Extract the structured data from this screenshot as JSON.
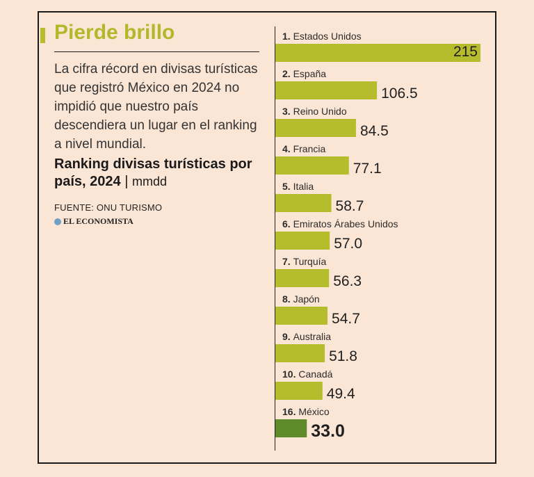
{
  "header": {
    "title": "Pierde brillo",
    "subtitle": "La cifra récord en divisas turísticas que registró México en 2024 no impidió que nuestro país descendiera un lugar en el ranking a nivel mundial.",
    "chart_title": "Ranking divisas turísticas por país, 2024",
    "chart_unit": "mmdd",
    "source": "FUENTE: ONU TURISMO",
    "brand": "EL ECONOMISTA"
  },
  "colors": {
    "background": "#fbe6d6",
    "bar": "#b5bd2c",
    "highlight_bar": "#5f8a2c",
    "title": "#b2b82a"
  },
  "chart_data": {
    "type": "bar",
    "orientation": "horizontal",
    "title": "Ranking divisas turísticas por país, 2024",
    "unit": "mmdd",
    "items": [
      {
        "rank": "1.",
        "category": "Estados Unidos",
        "value": 215,
        "label": "215"
      },
      {
        "rank": "2.",
        "category": "España",
        "value": 106.5,
        "label": "106.5"
      },
      {
        "rank": "3.",
        "category": "Reino Unido",
        "value": 84.5,
        "label": "84.5"
      },
      {
        "rank": "4.",
        "category": "Francia",
        "value": 77.1,
        "label": "77.1"
      },
      {
        "rank": "5.",
        "category": "Italia",
        "value": 58.7,
        "label": "58.7"
      },
      {
        "rank": "6.",
        "category": "Emiratos Árabes Unidos",
        "value": 57.0,
        "label": "57.0"
      },
      {
        "rank": "7.",
        "category": "Turquía",
        "value": 56.3,
        "label": "56.3"
      },
      {
        "rank": "8.",
        "category": "Japón",
        "value": 54.7,
        "label": "54.7"
      },
      {
        "rank": "9.",
        "category": "Australia",
        "value": 51.8,
        "label": "51.8"
      },
      {
        "rank": "10.",
        "category": "Canadá",
        "value": 49.4,
        "label": "49.4"
      },
      {
        "rank": "16.",
        "category": "México",
        "value": 33.0,
        "label": "33.0",
        "highlight": true
      }
    ],
    "xlim": [
      0,
      215
    ],
    "grid": false,
    "legend": "none"
  }
}
